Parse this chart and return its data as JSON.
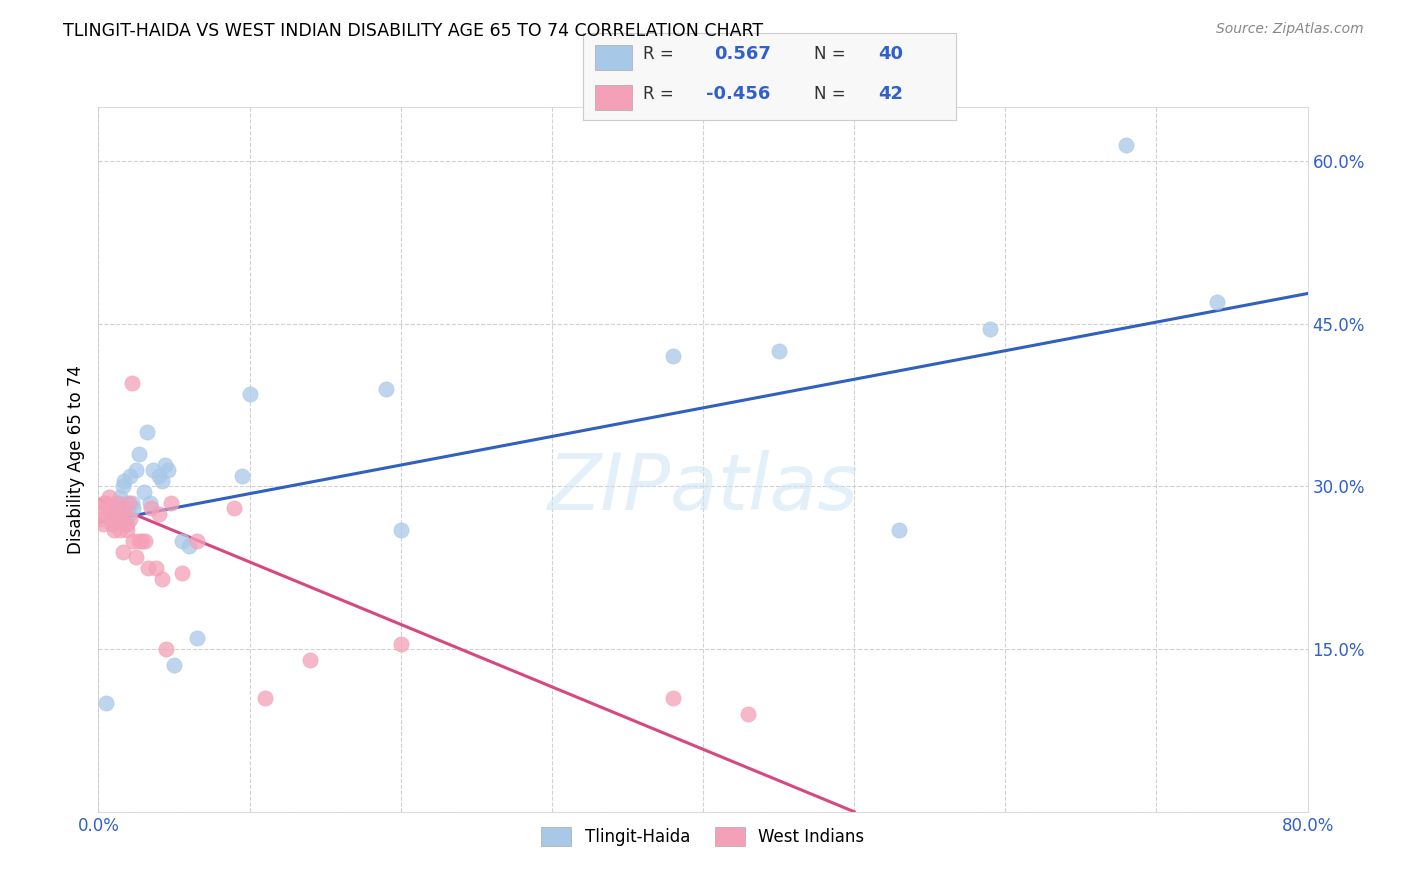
{
  "title": "TLINGIT-HAIDA VS WEST INDIAN DISABILITY AGE 65 TO 74 CORRELATION CHART",
  "source": "Source: ZipAtlas.com",
  "ylabel": "Disability Age 65 to 74",
  "xlim": [
    0.0,
    0.8
  ],
  "ylim": [
    0.0,
    0.65
  ],
  "legend_R1": "0.567",
  "legend_N1": "40",
  "legend_R2": "-0.456",
  "legend_N2": "42",
  "legend_label1": "Tlingit-Haida",
  "legend_label2": "West Indians",
  "color_blue": "#a8c8e8",
  "color_pink": "#f4a0b8",
  "color_blue_line": "#3060c0",
  "color_pink_line": "#d84880",
  "color_blue_text": "#3060cc",
  "tlingit_x": [
    0.005,
    0.009,
    0.01,
    0.011,
    0.012,
    0.013,
    0.014,
    0.015,
    0.016,
    0.017,
    0.018,
    0.019,
    0.02,
    0.021,
    0.022,
    0.023,
    0.025,
    0.027,
    0.03,
    0.032,
    0.034,
    0.036,
    0.04,
    0.042,
    0.044,
    0.046,
    0.05,
    0.055,
    0.06,
    0.065,
    0.095,
    0.1,
    0.19,
    0.2,
    0.38,
    0.45,
    0.53,
    0.59,
    0.68,
    0.74
  ],
  "tlingit_y": [
    0.1,
    0.265,
    0.27,
    0.275,
    0.28,
    0.285,
    0.29,
    0.275,
    0.3,
    0.305,
    0.285,
    0.265,
    0.275,
    0.31,
    0.285,
    0.28,
    0.315,
    0.33,
    0.295,
    0.35,
    0.285,
    0.315,
    0.31,
    0.305,
    0.32,
    0.315,
    0.135,
    0.25,
    0.245,
    0.16,
    0.31,
    0.385,
    0.39,
    0.26,
    0.42,
    0.425,
    0.26,
    0.445,
    0.615,
    0.47
  ],
  "westindian_x": [
    0.001,
    0.002,
    0.003,
    0.004,
    0.005,
    0.006,
    0.007,
    0.008,
    0.009,
    0.01,
    0.011,
    0.012,
    0.013,
    0.014,
    0.015,
    0.016,
    0.017,
    0.018,
    0.019,
    0.02,
    0.021,
    0.022,
    0.023,
    0.025,
    0.027,
    0.029,
    0.031,
    0.033,
    0.035,
    0.038,
    0.04,
    0.042,
    0.045,
    0.048,
    0.055,
    0.065,
    0.09,
    0.11,
    0.14,
    0.2,
    0.38,
    0.43
  ],
  "westindian_y": [
    0.275,
    0.27,
    0.265,
    0.285,
    0.285,
    0.28,
    0.29,
    0.275,
    0.265,
    0.26,
    0.275,
    0.285,
    0.275,
    0.26,
    0.27,
    0.24,
    0.28,
    0.265,
    0.26,
    0.285,
    0.27,
    0.395,
    0.25,
    0.235,
    0.25,
    0.25,
    0.25,
    0.225,
    0.28,
    0.225,
    0.275,
    0.215,
    0.15,
    0.285,
    0.22,
    0.25,
    0.28,
    0.105,
    0.14,
    0.155,
    0.105,
    0.09
  ]
}
